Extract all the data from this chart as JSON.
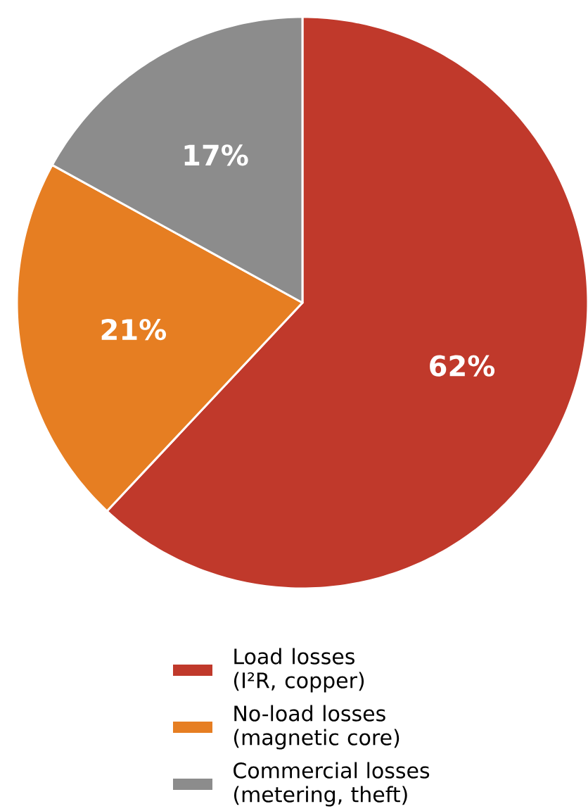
{
  "chart_data": {
    "type": "pie",
    "categories": [
      "Load losses (I²R, copper)",
      "No-load losses (magnetic core)",
      "Commercial losses (metering, theft)"
    ],
    "values": [
      62,
      21,
      17
    ],
    "colors": [
      "#c0392b",
      "#e67e22",
      "#8c8c8c"
    ],
    "value_labels": [
      "62%",
      "21%",
      "17%"
    ],
    "legend": "bottom"
  }
}
